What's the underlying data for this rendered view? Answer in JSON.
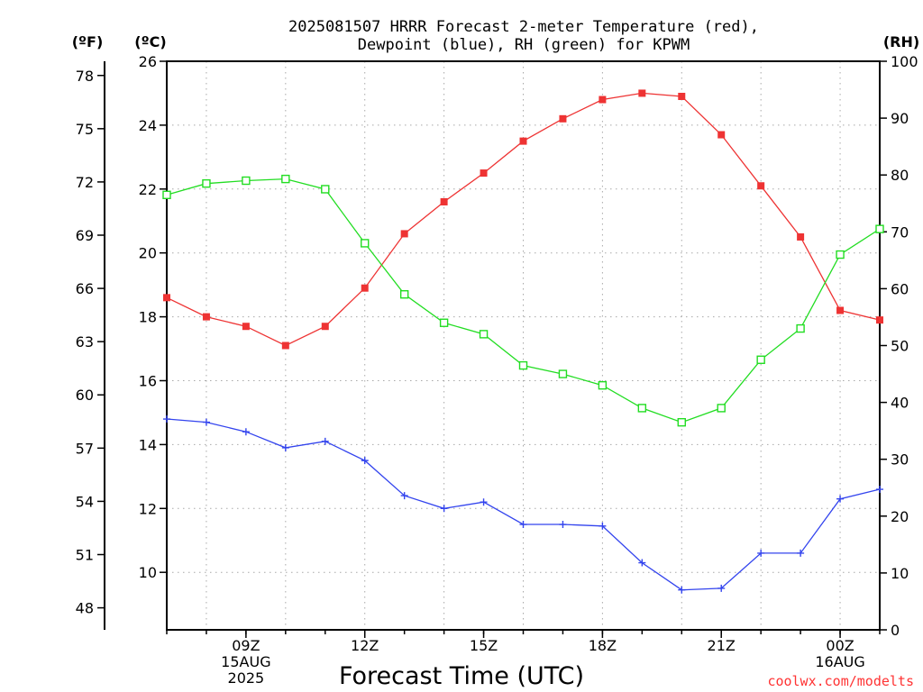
{
  "title_line1": "2025081507 HRRR Forecast 2-meter Temperature (red),",
  "title_line2": "Dewpoint (blue), RH (green) for KPWM",
  "credit": "coolwx.com/modelts",
  "chart_data": {
    "type": "line",
    "title": "2025081507 HRRR Forecast 2-meter Temperature (red), Dewpoint (blue), RH (green) for KPWM",
    "xlabel": "Forecast Time (UTC)",
    "x_hours": [
      7,
      8,
      9,
      10,
      11,
      12,
      13,
      14,
      15,
      16,
      17,
      18,
      19,
      20,
      21,
      22,
      23,
      24,
      25
    ],
    "x_range_hours": [
      7,
      25
    ],
    "x_tick_hours": [
      9,
      12,
      15,
      18,
      21,
      24
    ],
    "x_tick_labels": [
      [
        "09Z",
        "15AUG",
        "2025"
      ],
      [
        "12Z"
      ],
      [
        "15Z"
      ],
      [
        "18Z"
      ],
      [
        "21Z"
      ],
      [
        "00Z",
        "16AUG"
      ]
    ],
    "axes": {
      "left_outer": {
        "unit": "(ºF)",
        "ticks": [
          48,
          51,
          54,
          57,
          60,
          63,
          66,
          69,
          72,
          75,
          78
        ]
      },
      "left_inner": {
        "unit": "(ºC)",
        "range": [
          8.2,
          26
        ],
        "ticks": [
          10,
          12,
          14,
          16,
          18,
          20,
          22,
          24,
          26
        ]
      },
      "right": {
        "unit": "(RH)",
        "range": [
          0,
          100
        ],
        "ticks": [
          0,
          10,
          20,
          30,
          40,
          50,
          60,
          70,
          80,
          90,
          100
        ]
      }
    },
    "series": [
      {
        "color": "#ee3333",
        "marker": "filled-square",
        "axis": "left_inner",
        "values": [
          18.6,
          18.0,
          17.7,
          17.1,
          17.7,
          18.9,
          20.6,
          21.6,
          22.5,
          23.5,
          24.2,
          24.8,
          25.0,
          24.9,
          23.7,
          22.1,
          20.5,
          18.2,
          17.9
        ]
      },
      {
        "color": "#3344ee",
        "marker": "plus",
        "axis": "left_inner",
        "values": [
          14.8,
          14.7,
          14.4,
          13.9,
          14.1,
          13.5,
          12.4,
          12.0,
          12.2,
          11.5,
          11.5,
          11.45,
          10.3,
          9.45,
          9.5,
          10.6,
          10.6,
          12.3,
          12.6
        ]
      },
      {
        "color": "#22dd22",
        "marker": "open-square",
        "axis": "right",
        "values": [
          76.5,
          78.5,
          79.0,
          79.3,
          77.5,
          68.0,
          59.0,
          54.0,
          52.0,
          46.5,
          45.0,
          43.0,
          39.0,
          36.5,
          39.0,
          47.5,
          53.0,
          66.0,
          70.5
        ]
      }
    ]
  }
}
